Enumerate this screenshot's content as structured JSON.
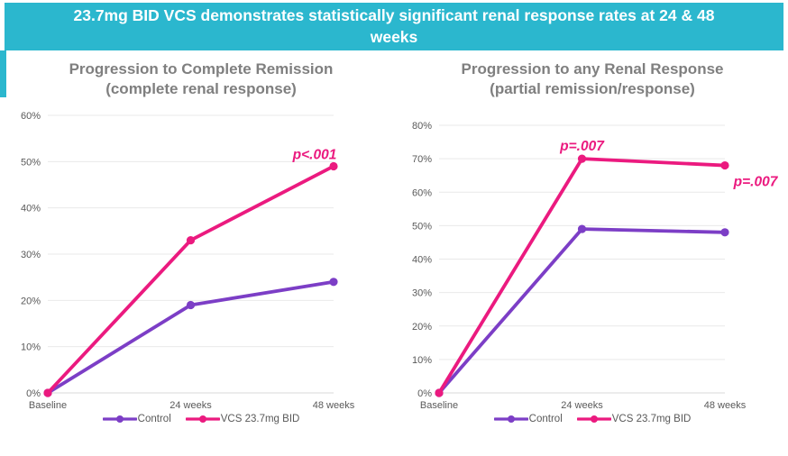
{
  "header": {
    "lines": [
      "23.7mg BID VCS demonstrates statistically significant renal response rates at 24 & 48",
      "weeks"
    ],
    "bg_color": "#2BB7CE",
    "text_color": "#FFFFFF"
  },
  "colors": {
    "accent_cyan": "#2BB7CE",
    "control_purple": "#7C3EC6",
    "vcs_pink": "#EB1A7F",
    "title_gray": "#7F7F7F",
    "axis_label_gray": "#595959",
    "gridline": "#E9E9E9",
    "baseline_axis": "#D9D9D9"
  },
  "chart_data": [
    {
      "type": "line",
      "title": "Progression to Complete Remission",
      "subtitle": "(complete renal response)",
      "categories": [
        "Baseline",
        "24 weeks",
        "48 weeks"
      ],
      "ylim": [
        0,
        60
      ],
      "ytick_step": 10,
      "ytick_suffix": "%",
      "grid": true,
      "legend_position": "bottom",
      "series": [
        {
          "name": "Control",
          "color": "#7C3EC6",
          "values": [
            0,
            19,
            24
          ]
        },
        {
          "name": "VCS 23.7mg BID",
          "color": "#EB1A7F",
          "values": [
            0,
            33,
            49
          ]
        }
      ],
      "annotations": [
        {
          "text": "p<.001",
          "series": 1,
          "category_index": 2,
          "value": 49,
          "color": "#EB1A7F"
        }
      ]
    },
    {
      "type": "line",
      "title": "Progression to any Renal Response",
      "subtitle": "(partial remission/response)",
      "categories": [
        "Baseline",
        "24 weeks",
        "48 weeks"
      ],
      "ylim": [
        0,
        80
      ],
      "ytick_step": 10,
      "ytick_suffix": "%",
      "grid": true,
      "legend_position": "bottom",
      "series": [
        {
          "name": "Control",
          "color": "#7C3EC6",
          "values": [
            0,
            49,
            48
          ]
        },
        {
          "name": "VCS 23.7mg BID",
          "color": "#EB1A7F",
          "values": [
            0,
            70,
            68
          ]
        }
      ],
      "annotations": [
        {
          "text": "p=.007",
          "series": 1,
          "category_index": 1,
          "value": 70,
          "color": "#EB1A7F"
        },
        {
          "text": "p=.007",
          "series": 1,
          "category_index": 2,
          "value": 68,
          "color": "#EB1A7F"
        }
      ]
    }
  ]
}
